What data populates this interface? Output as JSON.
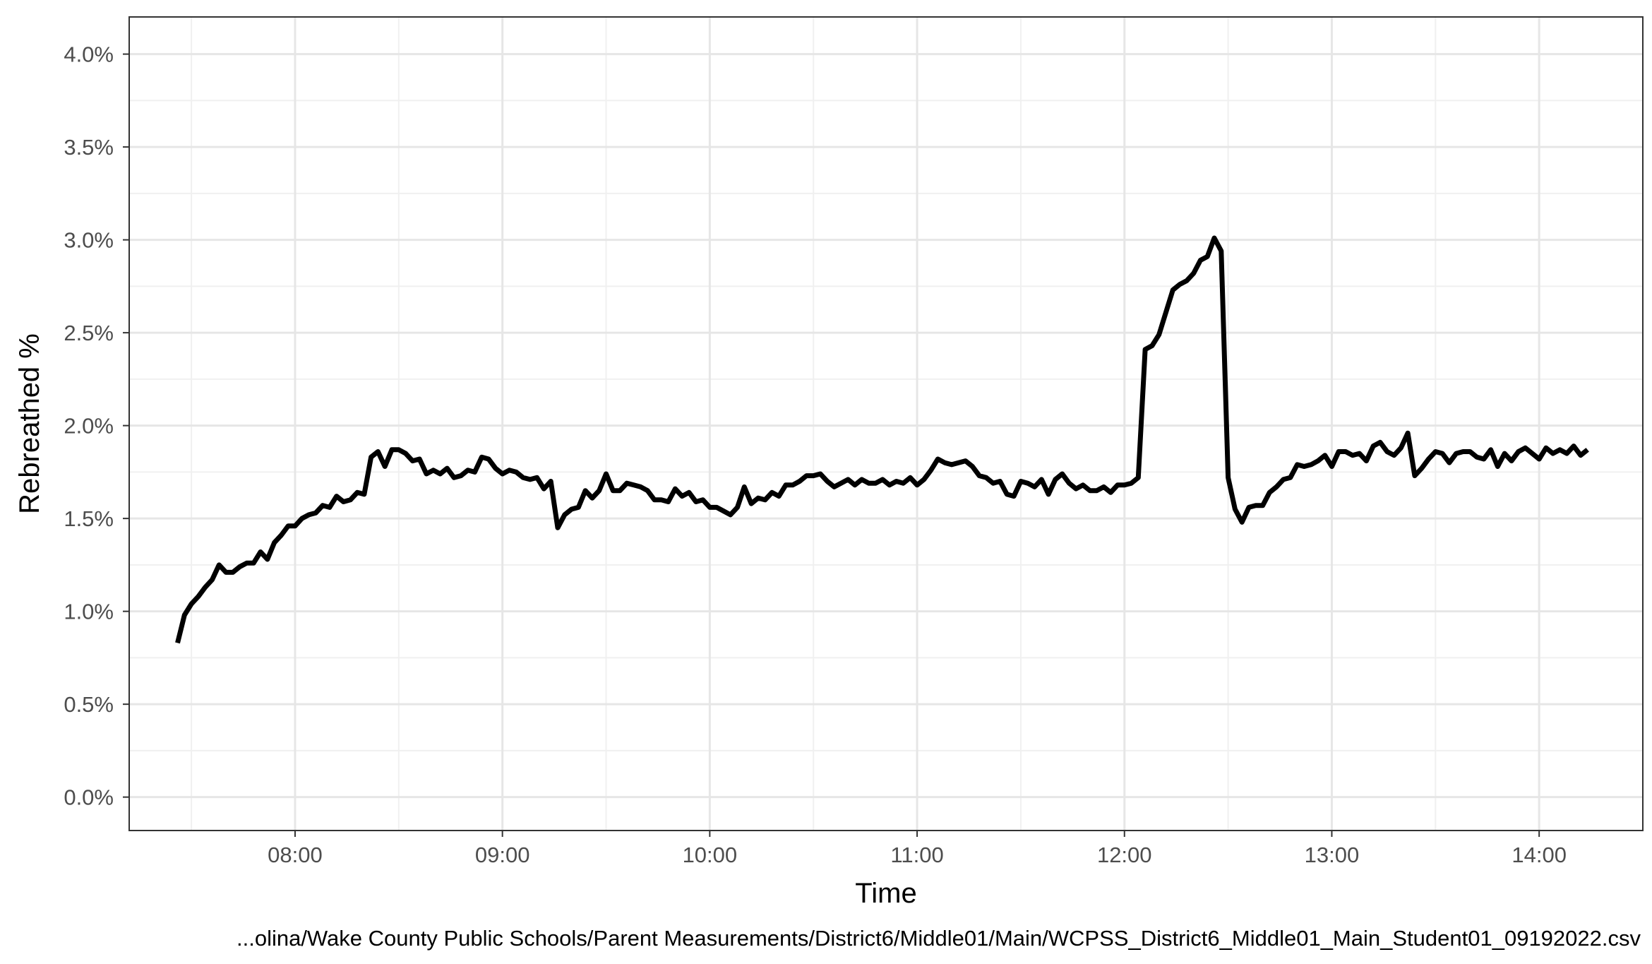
{
  "chart_data": {
    "type": "line",
    "xlabel": "Time",
    "ylabel": "Rebreathed %",
    "caption": "...olina/Wake County Public Schools/Parent Measurements/District6/Middle01/Main/WCPSS_District6_Middle01_Main_Student01_09192022.csv",
    "x_unit": "clock time (HH:MM)",
    "xlim": [
      "07:12",
      "14:30"
    ],
    "ylim": [
      -0.18,
      4.2
    ],
    "x_ticks": [
      "08:00",
      "09:00",
      "10:00",
      "11:00",
      "12:00",
      "13:00",
      "14:00"
    ],
    "y_ticks": [
      {
        "value": 0.0,
        "label": "0.0%"
      },
      {
        "value": 0.5,
        "label": "0.5%"
      },
      {
        "value": 1.0,
        "label": "1.0%"
      },
      {
        "value": 1.5,
        "label": "1.5%"
      },
      {
        "value": 2.0,
        "label": "2.0%"
      },
      {
        "value": 2.5,
        "label": "2.5%"
      },
      {
        "value": 3.0,
        "label": "3.0%"
      },
      {
        "value": 3.5,
        "label": "3.5%"
      },
      {
        "value": 4.0,
        "label": "4.0%"
      }
    ],
    "x_minor_ticks": [
      "07:30",
      "08:30",
      "09:30",
      "10:30",
      "11:30",
      "12:30",
      "13:30",
      "14:30"
    ],
    "y_minor_ticks": [
      0.25,
      0.75,
      1.25,
      1.75,
      2.25,
      2.75,
      3.25,
      3.75
    ],
    "grid": true,
    "line_color": "#000000",
    "series": [
      {
        "x": [
          "07:26",
          "07:28",
          "07:30",
          "07:32",
          "07:34",
          "07:36",
          "07:38",
          "07:40",
          "07:42",
          "07:44",
          "07:46",
          "07:48",
          "07:50",
          "07:52",
          "07:54",
          "07:56",
          "07:58",
          "08:00",
          "08:02",
          "08:04",
          "08:06",
          "08:08",
          "08:10",
          "08:12",
          "08:14",
          "08:16",
          "08:18",
          "08:20",
          "08:22",
          "08:24",
          "08:26",
          "08:28",
          "08:30",
          "08:32",
          "08:34",
          "08:36",
          "08:38",
          "08:40",
          "08:42",
          "08:44",
          "08:46",
          "08:48",
          "08:50",
          "08:52",
          "08:54",
          "08:56",
          "08:58",
          "09:00",
          "09:02",
          "09:04",
          "09:06",
          "09:08",
          "09:10",
          "09:12",
          "09:14",
          "09:16",
          "09:18",
          "09:20",
          "09:22",
          "09:24",
          "09:26",
          "09:28",
          "09:30",
          "09:32",
          "09:34",
          "09:36",
          "09:38",
          "09:40",
          "09:42",
          "09:44",
          "09:46",
          "09:48",
          "09:50",
          "09:52",
          "09:54",
          "09:56",
          "09:58",
          "10:00",
          "10:02",
          "10:04",
          "10:06",
          "10:08",
          "10:10",
          "10:12",
          "10:14",
          "10:16",
          "10:18",
          "10:20",
          "10:22",
          "10:24",
          "10:26",
          "10:28",
          "10:30",
          "10:32",
          "10:34",
          "10:36",
          "10:38",
          "10:40",
          "10:42",
          "10:44",
          "10:46",
          "10:48",
          "10:50",
          "10:52",
          "10:54",
          "10:56",
          "10:58",
          "11:00",
          "11:02",
          "11:04",
          "11:06",
          "11:08",
          "11:10",
          "11:12",
          "11:14",
          "11:16",
          "11:18",
          "11:20",
          "11:22",
          "11:24",
          "11:26",
          "11:28",
          "11:30",
          "11:32",
          "11:34",
          "11:36",
          "11:38",
          "11:40",
          "11:42",
          "11:44",
          "11:46",
          "11:48",
          "11:50",
          "11:52",
          "11:54",
          "11:56",
          "11:58",
          "12:00",
          "12:02",
          "12:04",
          "12:06",
          "12:08",
          "12:10",
          "12:12",
          "12:14",
          "12:16",
          "12:18",
          "12:20",
          "12:22",
          "12:24",
          "12:26",
          "12:28",
          "12:30",
          "12:32",
          "12:34",
          "12:36",
          "12:38",
          "12:40",
          "12:42",
          "12:44",
          "12:46",
          "12:48",
          "12:50",
          "12:52",
          "12:54",
          "12:56",
          "12:58",
          "13:00",
          "13:02",
          "13:04",
          "13:06",
          "13:08",
          "13:10",
          "13:12",
          "13:14",
          "13:16",
          "13:18",
          "13:20",
          "13:22",
          "13:24",
          "13:26",
          "13:28",
          "13:30",
          "13:32",
          "13:34",
          "13:36",
          "13:38",
          "13:40",
          "13:42",
          "13:44",
          "13:46",
          "13:48",
          "13:50",
          "13:52",
          "13:54",
          "13:56",
          "13:58",
          "14:00",
          "14:02",
          "14:04",
          "14:06",
          "14:08",
          "14:10",
          "14:12",
          "14:14"
        ],
        "y": [
          0.83,
          0.98,
          1.04,
          1.08,
          1.13,
          1.17,
          1.25,
          1.21,
          1.21,
          1.24,
          1.26,
          1.26,
          1.32,
          1.28,
          1.37,
          1.41,
          1.46,
          1.46,
          1.5,
          1.52,
          1.53,
          1.57,
          1.56,
          1.62,
          1.59,
          1.6,
          1.64,
          1.63,
          1.83,
          1.86,
          1.78,
          1.87,
          1.87,
          1.85,
          1.81,
          1.82,
          1.74,
          1.76,
          1.74,
          1.77,
          1.72,
          1.73,
          1.76,
          1.75,
          1.83,
          1.82,
          1.77,
          1.74,
          1.76,
          1.75,
          1.72,
          1.71,
          1.72,
          1.66,
          1.7,
          1.45,
          1.52,
          1.55,
          1.56,
          1.65,
          1.61,
          1.65,
          1.74,
          1.65,
          1.65,
          1.69,
          1.68,
          1.67,
          1.65,
          1.6,
          1.6,
          1.59,
          1.66,
          1.62,
          1.64,
          1.59,
          1.6,
          1.56,
          1.56,
          1.54,
          1.52,
          1.56,
          1.67,
          1.58,
          1.61,
          1.6,
          1.64,
          1.62,
          1.68,
          1.68,
          1.7,
          1.73,
          1.73,
          1.74,
          1.7,
          1.67,
          1.69,
          1.71,
          1.68,
          1.71,
          1.69,
          1.69,
          1.71,
          1.68,
          1.7,
          1.69,
          1.72,
          1.68,
          1.71,
          1.76,
          1.82,
          1.8,
          1.79,
          1.8,
          1.81,
          1.78,
          1.73,
          1.72,
          1.69,
          1.7,
          1.63,
          1.62,
          1.7,
          1.69,
          1.67,
          1.71,
          1.63,
          1.71,
          1.74,
          1.69,
          1.66,
          1.68,
          1.65,
          1.65,
          1.67,
          1.64,
          1.68,
          1.68,
          1.69,
          1.72,
          2.41,
          2.43,
          2.49,
          2.61,
          2.73,
          2.76,
          2.78,
          2.82,
          2.89,
          2.91,
          3.01,
          2.94,
          1.72,
          1.55,
          1.48,
          1.56,
          1.57,
          1.57,
          1.64,
          1.67,
          1.71,
          1.72,
          1.79,
          1.78,
          1.79,
          1.81,
          1.84,
          1.78,
          1.86,
          1.86,
          1.84,
          1.85,
          1.81,
          1.89,
          1.91,
          1.86,
          1.84,
          1.88,
          1.96,
          1.73,
          1.77,
          1.82,
          1.86,
          1.85,
          1.8,
          1.85,
          1.86,
          1.86,
          1.83,
          1.82,
          1.87,
          1.78,
          1.85,
          1.81,
          1.86,
          1.88,
          1.85,
          1.82,
          1.88,
          1.85,
          1.87,
          1.85,
          1.89,
          1.84,
          1.87
        ]
      }
    ]
  }
}
